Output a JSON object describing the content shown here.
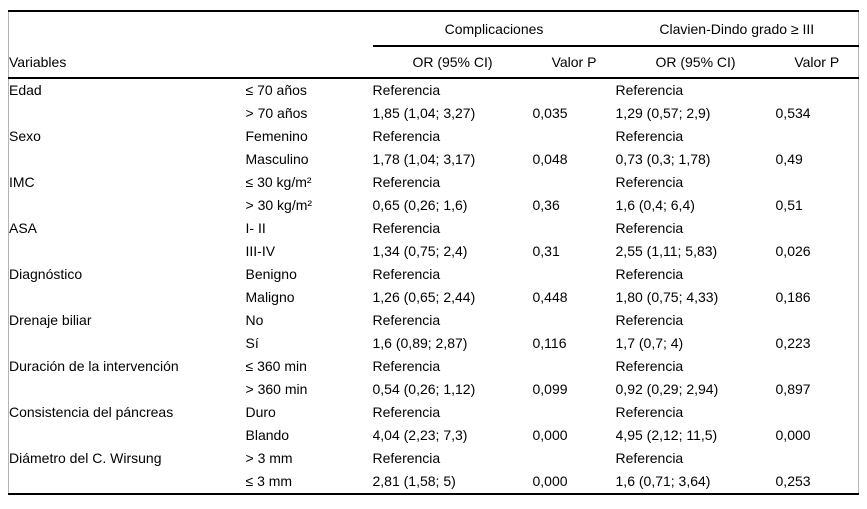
{
  "table": {
    "group_headers": {
      "complications": "Complicaciones",
      "clavien_dindo": "Clavien-Dindo grado ≥ III"
    },
    "col_headers": {
      "variables": "Variables",
      "or_ci_1": "OR (95% CI)",
      "p_1": "Valor P",
      "or_ci_2": "OR (95% CI)",
      "p_2": "Valor P"
    },
    "rows": [
      [
        "Edad",
        "≤ 70 años",
        "Referencia",
        "",
        "Referencia",
        ""
      ],
      [
        "",
        "> 70 años",
        "1,85 (1,04; 3,27)",
        "0,035",
        "1,29 (0,57; 2,9)",
        "0,534"
      ],
      [
        "Sexo",
        "Femenino",
        "Referencia",
        "",
        "Referencia",
        ""
      ],
      [
        "",
        "Masculino",
        "1,78 (1,04; 3,17)",
        "0,048",
        "0,73 (0,3; 1,78)",
        "0,49"
      ],
      [
        "IMC",
        "≤ 30 kg/m²",
        "Referencia",
        "",
        "Referencia",
        ""
      ],
      [
        "",
        "> 30 kg/m²",
        "0,65 (0,26; 1,6)",
        "0,36",
        "1,6 (0,4; 6,4)",
        "0,51"
      ],
      [
        "ASA",
        "I- II",
        "Referencia",
        "",
        "Referencia",
        ""
      ],
      [
        "",
        "III-IV",
        "1,34 (0,75; 2,4)",
        "0,31",
        "2,55 (1,11; 5,83)",
        "0,026"
      ],
      [
        "Diagnóstico",
        "Benigno",
        "Referencia",
        "",
        "Referencia",
        ""
      ],
      [
        "",
        "Maligno",
        "1,26 (0,65; 2,44)",
        "0,448",
        "1,80 (0,75; 4,33)",
        "0,186"
      ],
      [
        "Drenaje biliar",
        "No",
        "Referencia",
        "",
        "Referencia",
        ""
      ],
      [
        "",
        "Sí",
        "1,6 (0,89; 2,87)",
        "0,116",
        "1,7 (0,7; 4)",
        "0,223"
      ],
      [
        "Duración de la intervención",
        "≤ 360 min",
        "Referencia",
        "",
        "Referencia",
        ""
      ],
      [
        "",
        "> 360 min",
        "0,54 (0,26; 1,12)",
        "0,099",
        "0,92 (0,29; 2,94)",
        "0,897"
      ],
      [
        "Consistencia del páncreas",
        "Duro",
        "Referencia",
        "",
        "Referencia",
        ""
      ],
      [
        "",
        "Blando",
        "4,04 (2,23; 7,3)",
        "0,000",
        "4,95 (2,12; 11,5)",
        "0,000"
      ],
      [
        "Diámetro del C. Wirsung",
        "> 3 mm",
        "Referencia",
        "",
        "Referencia",
        ""
      ],
      [
        "",
        "≤ 3 mm",
        "2,81 (1,58; 5)",
        "0,000",
        "1,6 (0,71; 3,64)",
        "0,253"
      ]
    ]
  }
}
